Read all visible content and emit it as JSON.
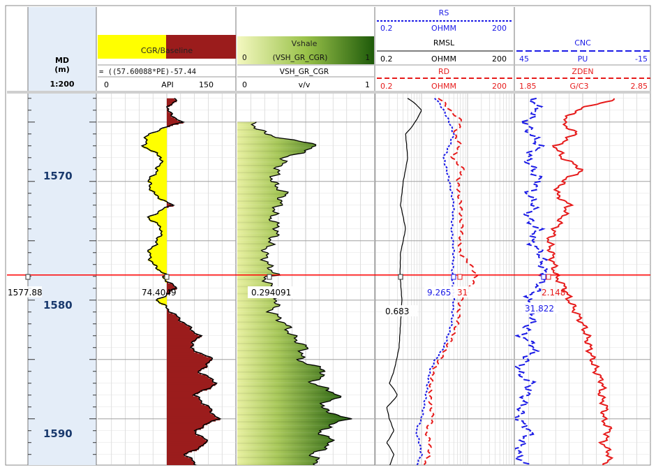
{
  "colors": {
    "yellow_fill": "#ffff00",
    "maroon_fill": "#9b1c1c",
    "green_dark": "#2f6b12",
    "green_light": "#e8f0a0",
    "blue_curve": "#1a1ae6",
    "red_curve": "#e61a1a",
    "black_curve": "#000000",
    "cursor_line": "#ff0000",
    "grid": "#c8c8c8",
    "depth_bg": "#e4edf8"
  },
  "depth_track": {
    "title": "MD",
    "unit": "(m)",
    "scale": "1:200",
    "depth_labels": [
      "1570",
      "1580",
      "1590"
    ]
  },
  "track1": {
    "header_title": "CGR/Baseline",
    "formula": "= ((57.60088*PE)-57.44",
    "scale_min": "0",
    "scale_unit": "API",
    "scale_max": "150"
  },
  "track2": {
    "header_title": "Vshale",
    "fill_row_min": "0",
    "fill_row_name": "(VSH_GR_CGR)",
    "fill_row_max": "1",
    "curve_name": "VSH_GR_CGR",
    "scale_min": "0",
    "scale_unit": "v/v",
    "scale_max": "1"
  },
  "track3": {
    "rs": {
      "name": "RS",
      "min": "0.2",
      "unit": "OHMM",
      "max": "200"
    },
    "rmsl": {
      "name": "RMSL",
      "min": "0.2",
      "unit": "OHMM",
      "max": "200"
    },
    "rd": {
      "name": "RD",
      "min": "0.2",
      "unit": "OHMM",
      "max": "200"
    }
  },
  "track4": {
    "cnc": {
      "name": "CNC",
      "min": "45",
      "unit": "PU",
      "max": "-15"
    },
    "zden": {
      "name": "ZDEN",
      "min": "1.85",
      "unit": "G/C3",
      "max": "2.85"
    }
  },
  "cursor": {
    "depth": "1577.88",
    "cgr_value": "74.4049",
    "vsh_value": "0.294091",
    "rmsl_value": "0.683",
    "rs_value": "9.265",
    "rd_value_partial": "31",
    "zden_value": "2.148",
    "cnc_value": "31.822"
  },
  "chart_data": {
    "type": "line",
    "y_axis": "MD (m)",
    "ylim": [
      1562.6,
      1593.9
    ],
    "y_ticks": [
      1570,
      1580,
      1590
    ],
    "cursor_depth": 1577.88,
    "series": [
      {
        "name": "CGR/Baseline",
        "unit": "API",
        "xlim": [
          0,
          150
        ],
        "depth": [
          1563,
          1564,
          1565,
          1566,
          1567,
          1568,
          1569,
          1570,
          1571,
          1572,
          1573,
          1574,
          1575,
          1576,
          1577,
          1577.88,
          1578,
          1579,
          1580,
          1581,
          1582,
          1583,
          1584,
          1585,
          1586,
          1587,
          1588,
          1589,
          1590,
          1591,
          1592,
          1593,
          1594
        ],
        "values": [
          85,
          75,
          90,
          55,
          50,
          70,
          65,
          55,
          60,
          80,
          55,
          70,
          65,
          55,
          60,
          74,
          70,
          85,
          65,
          80,
          95,
          110,
          100,
          125,
          110,
          130,
          105,
          120,
          130,
          105,
          120,
          95,
          110
        ]
      },
      {
        "name": "VSH_GR_CGR",
        "unit": "v/v",
        "xlim": [
          0,
          1
        ],
        "depth": [
          1565,
          1566,
          1567,
          1568,
          1569,
          1570,
          1571,
          1572,
          1573,
          1574,
          1575,
          1576,
          1577,
          1577.88,
          1578,
          1579,
          1580,
          1581,
          1582,
          1583,
          1584,
          1585,
          1586,
          1587,
          1588,
          1589,
          1590,
          1591,
          1592,
          1593,
          1594
        ],
        "values": [
          0.1,
          0.2,
          0.6,
          0.35,
          0.3,
          0.25,
          0.35,
          0.3,
          0.25,
          0.3,
          0.25,
          0.2,
          0.22,
          0.29,
          0.2,
          0.25,
          0.3,
          0.25,
          0.35,
          0.4,
          0.5,
          0.45,
          0.65,
          0.55,
          0.75,
          0.6,
          0.8,
          0.6,
          0.7,
          0.55,
          0.6
        ]
      },
      {
        "name": "RMSL",
        "unit": "OHMM",
        "scale": "log",
        "xlim": [
          0.2,
          200
        ],
        "depth": [
          1563,
          1564,
          1566,
          1568,
          1570,
          1572,
          1574,
          1576,
          1577.88,
          1580,
          1582,
          1584,
          1586,
          1587,
          1588,
          1589,
          1590,
          1591,
          1592,
          1593,
          1594
        ],
        "values": [
          1.0,
          2.0,
          0.9,
          1.0,
          0.8,
          0.7,
          0.9,
          0.7,
          0.683,
          0.75,
          0.7,
          0.65,
          0.5,
          0.4,
          0.6,
          0.35,
          0.4,
          0.5,
          0.35,
          0.5,
          0.4
        ]
      },
      {
        "name": "RS",
        "unit": "OHMM",
        "scale": "log",
        "xlim": [
          0.2,
          200
        ],
        "depth": [
          1563,
          1564,
          1566,
          1568,
          1570,
          1572,
          1574,
          1576,
          1577.88,
          1580,
          1582,
          1584,
          1585,
          1586,
          1588,
          1590,
          1591,
          1592,
          1593,
          1594
        ],
        "values": [
          4,
          6,
          10,
          6,
          8,
          10,
          9,
          10,
          9.265,
          10,
          9,
          6,
          4,
          3,
          2.5,
          2,
          1.5,
          1.8,
          2,
          1.5
        ]
      },
      {
        "name": "RD",
        "unit": "OHMM",
        "scale": "log",
        "xlim": [
          0.2,
          200
        ],
        "depth": [
          1563,
          1564,
          1565,
          1566,
          1567,
          1568,
          1569,
          1570,
          1572,
          1574,
          1576,
          1577.88,
          1580,
          1582,
          1584,
          1585,
          1586,
          1588,
          1590,
          1591,
          1592,
          1593,
          1594
        ],
        "values": [
          5,
          8,
          15,
          10,
          14,
          9,
          16,
          12,
          14,
          15,
          13,
          31,
          14,
          12,
          7,
          5,
          3.5,
          3,
          3.5,
          2.5,
          3,
          3,
          2
        ]
      },
      {
        "name": "CNC",
        "unit": "PU",
        "xlim": [
          45,
          -15
        ],
        "depth": [
          1563,
          1564,
          1565,
          1566,
          1567,
          1568,
          1569,
          1570,
          1571,
          1572,
          1573,
          1574,
          1575,
          1576,
          1577.88,
          1579,
          1580,
          1581,
          1582,
          1583,
          1584,
          1585,
          1586,
          1587,
          1588,
          1589,
          1590,
          1591,
          1592,
          1593,
          1594
        ],
        "values": [
          37,
          35,
          40,
          38,
          34,
          40,
          37,
          34,
          39,
          36,
          40,
          35,
          38,
          34,
          31.822,
          35,
          40,
          36,
          38,
          42,
          36,
          40,
          44,
          38,
          40,
          42,
          44,
          38,
          42,
          44,
          40
        ]
      },
      {
        "name": "ZDEN",
        "unit": "G/C3",
        "xlim": [
          1.85,
          2.85
        ],
        "depth": [
          1563,
          1564,
          1565,
          1566,
          1567,
          1568,
          1569,
          1570,
          1571,
          1572,
          1573,
          1574,
          1575,
          1576,
          1577.88,
          1579,
          1580,
          1581,
          1582,
          1583,
          1584,
          1585,
          1586,
          1587,
          1588,
          1589,
          1590,
          1591,
          1592,
          1593,
          1594
        ],
        "values": [
          2.6,
          2.3,
          2.2,
          2.3,
          2.15,
          2.2,
          2.35,
          2.2,
          2.15,
          2.25,
          2.2,
          2.15,
          2.1,
          2.12,
          2.148,
          2.22,
          2.25,
          2.3,
          2.35,
          2.38,
          2.4,
          2.42,
          2.45,
          2.5,
          2.48,
          2.52,
          2.5,
          2.55,
          2.5,
          2.55,
          2.52
        ]
      }
    ]
  }
}
